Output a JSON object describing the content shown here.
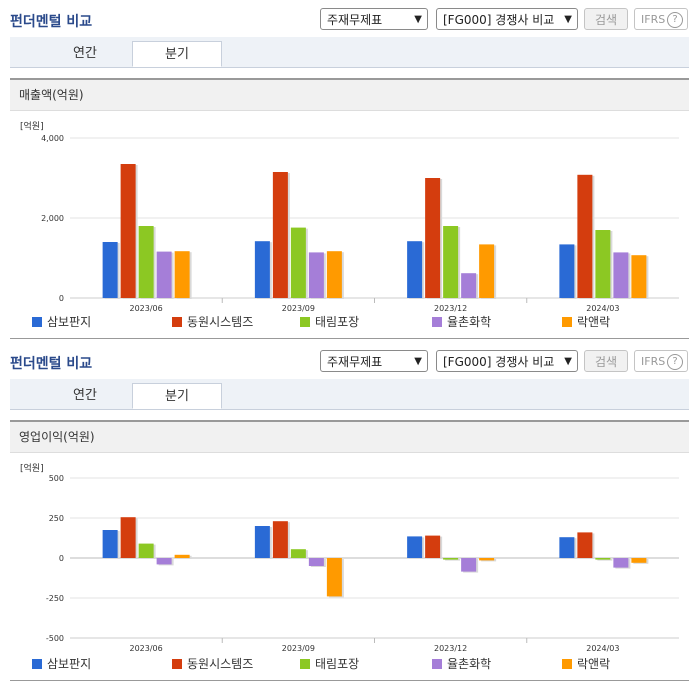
{
  "controls": {
    "title": "펀더멘털 비교",
    "select_statement": "주재무제표",
    "select_compare": "[FG000] 경쟁사 비교",
    "search_label": "검색",
    "ifrs_label": "IFRS",
    "ifrs_help": "?"
  },
  "tabs": [
    {
      "label": "연간",
      "active": false
    },
    {
      "label": "분기",
      "active": true
    }
  ],
  "colors": {
    "삼보판지": "#2a6ad5",
    "동원시스템즈": "#d43d0e",
    "태림포장": "#8cc823",
    "율촌화학": "#a57ed8",
    "락앤락": "#ff9a00"
  },
  "chart_data": [
    {
      "type": "bar",
      "title": "매출액(억원)",
      "unit": "[억원]",
      "categories": [
        "2023/06",
        "2023/09",
        "2023/12",
        "2024/03"
      ],
      "ylim": [
        0,
        4000
      ],
      "yticks": [
        "0",
        "2,000",
        "4,000"
      ],
      "ytick_values": [
        0,
        2000,
        4000
      ],
      "grid": true,
      "legend": "bottom",
      "series": [
        {
          "name": "삼보판지",
          "values": [
            1400,
            1420,
            1420,
            1340
          ]
        },
        {
          "name": "동원시스템즈",
          "values": [
            3350,
            3150,
            3000,
            3080
          ]
        },
        {
          "name": "태림포장",
          "values": [
            1800,
            1760,
            1800,
            1700
          ]
        },
        {
          "name": "율촌화학",
          "values": [
            1160,
            1140,
            620,
            1140
          ]
        },
        {
          "name": "락앤락",
          "values": [
            1170,
            1170,
            1340,
            1070
          ]
        }
      ]
    },
    {
      "type": "bar",
      "title": "영업이익(억원)",
      "unit": "[억원]",
      "categories": [
        "2023/06",
        "2023/09",
        "2023/12",
        "2024/03"
      ],
      "ylim": [
        -500,
        500
      ],
      "yticks": [
        "-500",
        "-250",
        "0",
        "250",
        "500"
      ],
      "ytick_values": [
        -500,
        -250,
        0,
        250,
        500
      ],
      "grid": true,
      "legend": "bottom",
      "series": [
        {
          "name": "삼보판지",
          "values": [
            175,
            200,
            135,
            130
          ]
        },
        {
          "name": "동원시스템즈",
          "values": [
            255,
            230,
            140,
            160
          ]
        },
        {
          "name": "태림포장",
          "values": [
            90,
            55,
            -10,
            -10
          ]
        },
        {
          "name": "율촌화학",
          "values": [
            -40,
            -50,
            -85,
            -60
          ]
        },
        {
          "name": "락앤락",
          "values": [
            20,
            -240,
            -15,
            -30
          ]
        }
      ]
    }
  ]
}
